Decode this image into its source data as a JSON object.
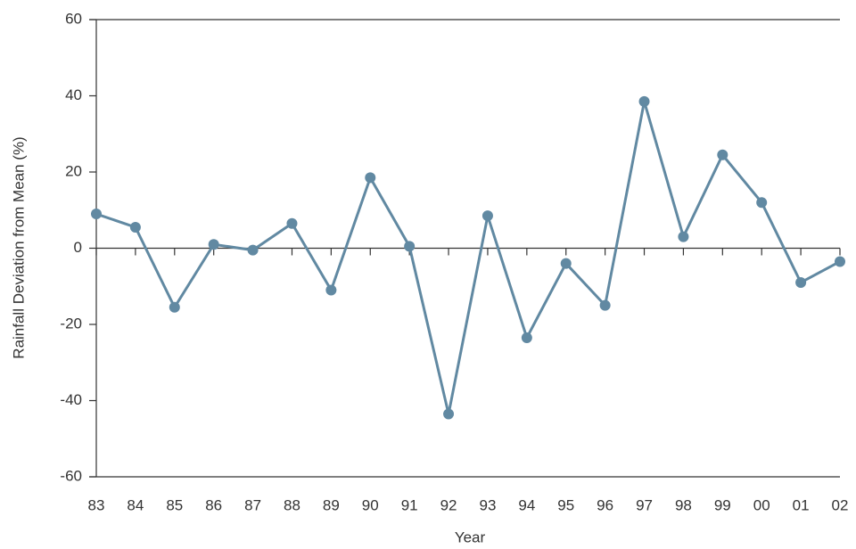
{
  "chart_data": {
    "type": "line",
    "x_label": "Year",
    "y_label": "Rainfall Deviation from Mean (%)",
    "categories": [
      "83",
      "84",
      "85",
      "86",
      "87",
      "88",
      "89",
      "90",
      "91",
      "92",
      "93",
      "94",
      "95",
      "96",
      "97",
      "98",
      "99",
      "00",
      "01",
      "02"
    ],
    "values": [
      9,
      5.5,
      -15.5,
      1,
      -0.5,
      6.5,
      -11,
      18.5,
      0.5,
      -43.5,
      8.5,
      -23.5,
      -4,
      -15,
      38.5,
      3,
      24.5,
      12,
      -9,
      -3.5
    ],
    "color": "#6189a2",
    "ylim": [
      -60,
      60
    ],
    "yticks": [
      -60,
      -40,
      -20,
      0,
      20,
      40,
      60
    ]
  }
}
